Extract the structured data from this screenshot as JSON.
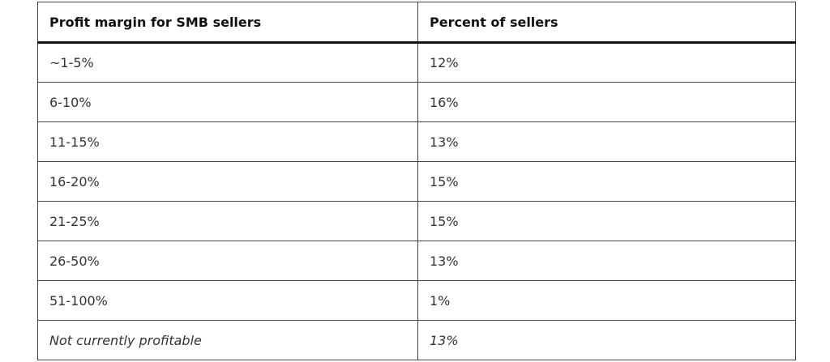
{
  "table": {
    "header": [
      "Profit margin for SMB sellers",
      "Percent of sellers"
    ],
    "rows": [
      [
        "~1-5%",
        "12%"
      ],
      [
        "6-10%",
        "16%"
      ],
      [
        "11-15%",
        "13%"
      ],
      [
        "16-20%",
        "15%"
      ],
      [
        "21-25%",
        "15%"
      ],
      [
        "26-50%",
        "13%"
      ],
      [
        "51-100%",
        "1%"
      ],
      [
        "Not currently profitable",
        "13%"
      ]
    ]
  }
}
